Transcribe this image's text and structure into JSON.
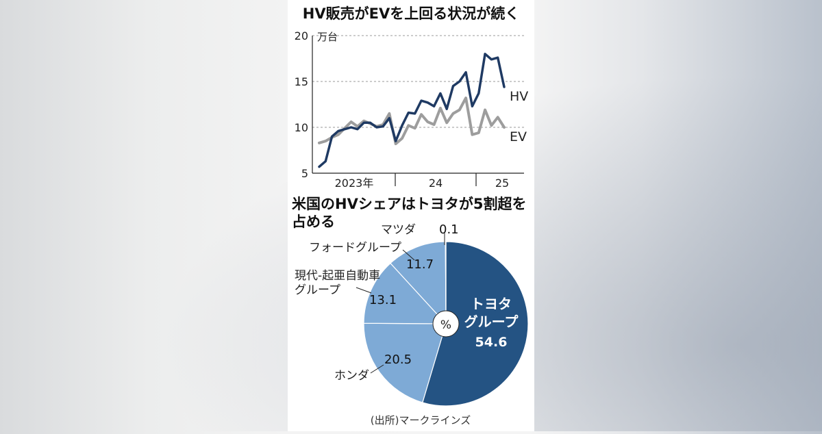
{
  "chart_data": [
    {
      "type": "line",
      "title": "HV販売がEVを上回る状況が続く",
      "unit_label": "万台",
      "ylim": [
        5,
        20
      ],
      "y_ticks": [
        "5",
        "10",
        "15",
        "20"
      ],
      "x_period_labels": [
        "2023年",
        "24",
        "25"
      ],
      "grid": true,
      "series": [
        {
          "name": "HV",
          "color": "#1f3a63",
          "values": [
            5.7,
            6.3,
            9.0,
            9.6,
            9.8,
            10.0,
            9.8,
            10.5,
            10.5,
            10.0,
            10.1,
            11.0,
            8.5,
            10.2,
            11.6,
            11.5,
            12.9,
            12.7,
            12.3,
            13.7,
            12.0,
            14.5,
            15.0,
            16.0,
            12.3,
            13.7,
            18.0,
            17.4,
            17.6,
            14.4
          ]
        },
        {
          "name": "EV",
          "color": "#9d9d9d",
          "values": [
            8.3,
            8.5,
            8.9,
            9.2,
            9.9,
            10.6,
            10.1,
            10.7,
            10.4,
            10.1,
            10.3,
            11.5,
            8.2,
            8.8,
            10.2,
            9.9,
            11.4,
            10.6,
            10.3,
            12.1,
            10.5,
            11.5,
            11.9,
            13.2,
            9.2,
            9.4,
            11.9,
            10.2,
            11.1,
            10.0
          ]
        }
      ]
    },
    {
      "type": "pie",
      "title": "米国のHVシェアはトヨタが5割超を占める",
      "center_label": "%",
      "slices": [
        {
          "label": "トヨタグループ",
          "value": 54.6,
          "display": "54.6",
          "color": "#245383"
        },
        {
          "label": "ホンダ",
          "value": 20.5,
          "display": "20.5",
          "color": "#7eaad6"
        },
        {
          "label": "現代-起亜自動車グループ",
          "value": 13.1,
          "display": "13.1",
          "color": "#7eaad6"
        },
        {
          "label": "フォードグループ",
          "value": 11.7,
          "display": "11.7",
          "color": "#7eaad6"
        },
        {
          "label": "マツダ",
          "value": 0.1,
          "display": "0.1",
          "color": "#7eaad6"
        }
      ]
    }
  ],
  "source": "(出所)マークラインズ"
}
